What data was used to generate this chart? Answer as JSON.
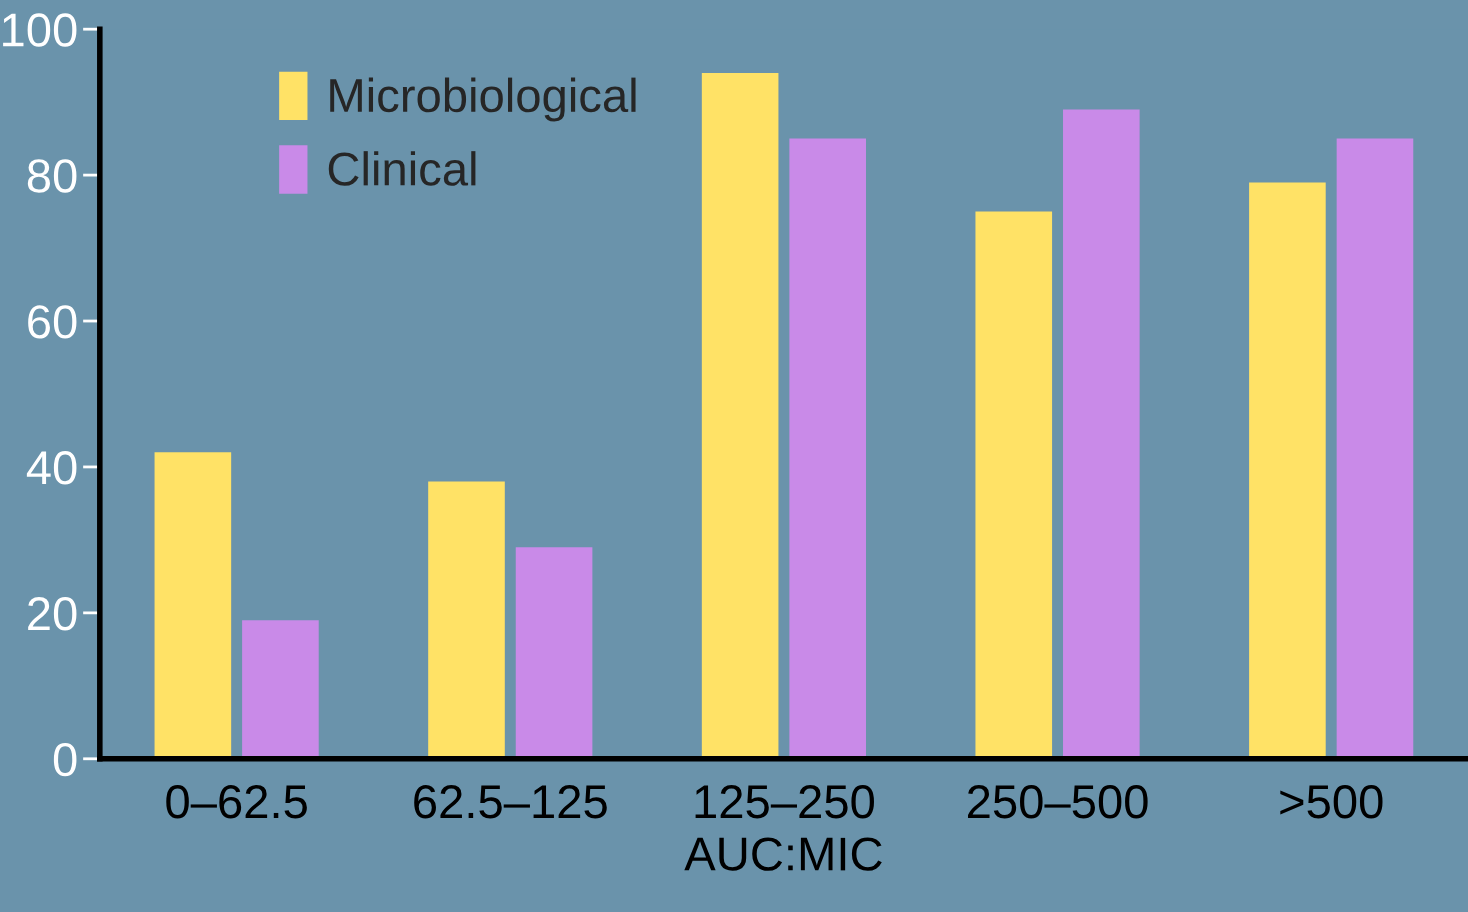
{
  "chart_data": {
    "type": "bar",
    "xlabel": "AUC:MIC",
    "categories": [
      "0–62.5",
      "62.5–125",
      "125–250",
      "250–500",
      ">500"
    ],
    "series": [
      {
        "name": "Microbiological",
        "color": "#ffe266",
        "values": [
          42,
          38,
          94,
          75,
          79
        ]
      },
      {
        "name": "Clinical",
        "color": "#c98ae8",
        "values": [
          19,
          29,
          85,
          89,
          85
        ]
      }
    ],
    "ylim": [
      0,
      100
    ],
    "yticks": [
      0,
      20,
      40,
      60,
      80,
      100
    ],
    "grid": false,
    "legend": "top left"
  }
}
